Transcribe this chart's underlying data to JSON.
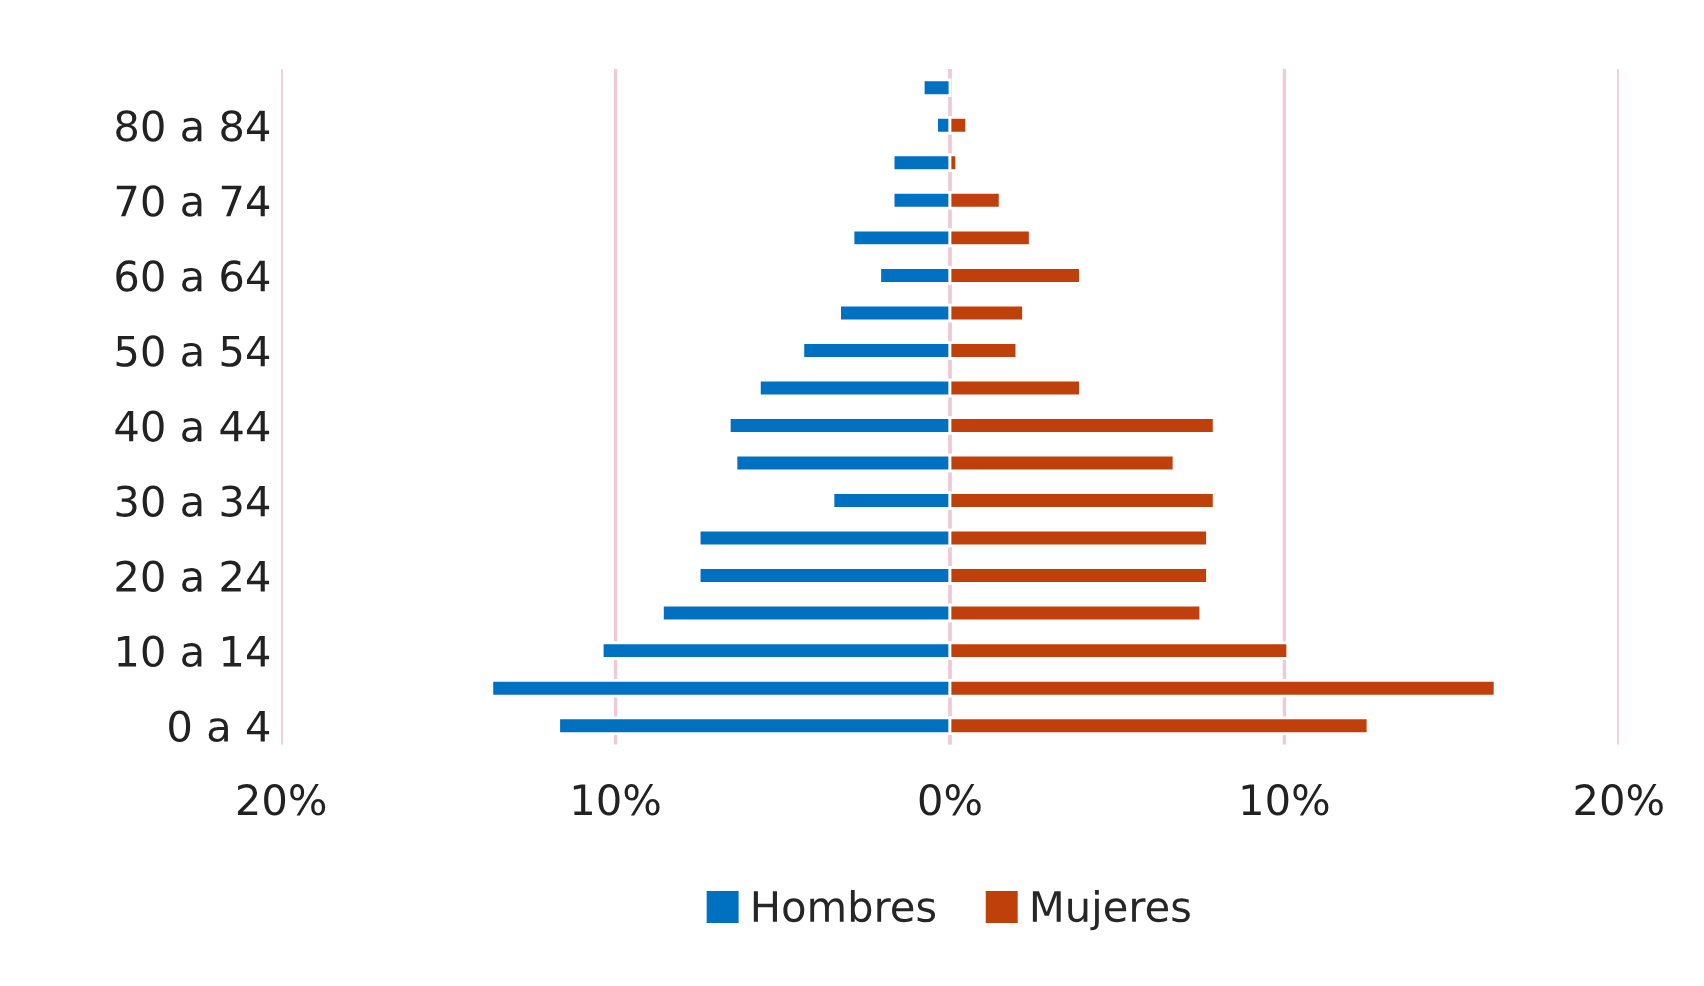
{
  "chart_data": {
    "type": "bar",
    "orientation": "horizontal",
    "categories": [
      null,
      "80 a 84",
      null,
      "70 a 74",
      null,
      "60 a 64",
      null,
      "50 a 54",
      null,
      "40 a 44",
      null,
      "30 a 34",
      null,
      "20 a 24",
      null,
      "10 a 14",
      null,
      "0 a 4"
    ],
    "series": [
      {
        "name": "Hombres",
        "color": "#0070c0",
        "values": [
          -0.8,
          -0.4,
          -1.7,
          -1.7,
          -2.9,
          -2.1,
          -3.3,
          -4.4,
          -5.7,
          -6.6,
          -6.4,
          -3.5,
          -7.5,
          -7.5,
          -8.6,
          -10.4,
          -13.7,
          -11.7
        ]
      },
      {
        "name": "Mujeres",
        "color": "#c0400b",
        "values": [
          null,
          0.5,
          0.2,
          1.5,
          2.4,
          3.9,
          2.2,
          2.0,
          3.9,
          7.9,
          6.7,
          7.9,
          7.7,
          7.7,
          7.5,
          10.1,
          16.3,
          12.5
        ]
      }
    ],
    "xlim": [
      -20,
      20
    ],
    "xticks": [
      {
        "value": -20,
        "label": "20%"
      },
      {
        "value": -10,
        "label": "10%"
      },
      {
        "value": 0,
        "label": "0%"
      },
      {
        "value": 10,
        "label": "10%"
      },
      {
        "value": 20,
        "label": "20%"
      }
    ],
    "stacked": true,
    "grid": "x",
    "legend": "bottom"
  }
}
